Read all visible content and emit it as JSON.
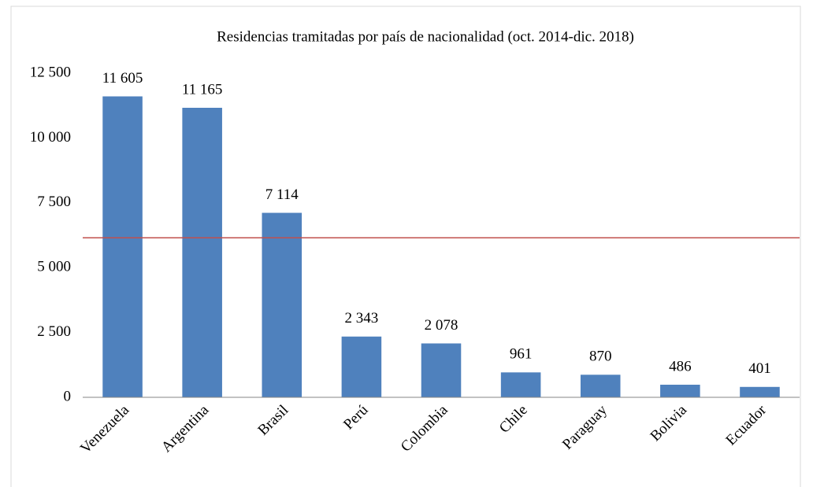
{
  "chart_data": {
    "type": "bar",
    "title": "Residencias tramitadas por país de nacionalidad (oct. 2014-dic. 2018)",
    "categories": [
      "Venezuela",
      "Argentina",
      "Brasil",
      "Perú",
      "Colombia",
      "Chile",
      "Paraguay",
      "Bolivia",
      "Ecuador"
    ],
    "values": [
      11605,
      11165,
      7114,
      2343,
      2078,
      961,
      870,
      486,
      401
    ],
    "value_labels": [
      "11 605",
      "11 165",
      "7 114",
      "2 343",
      "2 078",
      "961",
      "870",
      "486",
      "401"
    ],
    "color": "#4f81bd",
    "ylim": [
      0,
      12500
    ],
    "yticks": [
      0,
      {
        "value": 2500,
        "label": "2 500"
      },
      {
        "value": 5000,
        "label": "5 000"
      },
      {
        "value": 7500,
        "label": "7 500"
      },
      {
        "value": 10000,
        "label": "10 000"
      },
      {
        "value": 12500,
        "label": "12 500"
      }
    ],
    "reference_line": 6150,
    "reference_color": "#c0504d",
    "grid": false
  }
}
